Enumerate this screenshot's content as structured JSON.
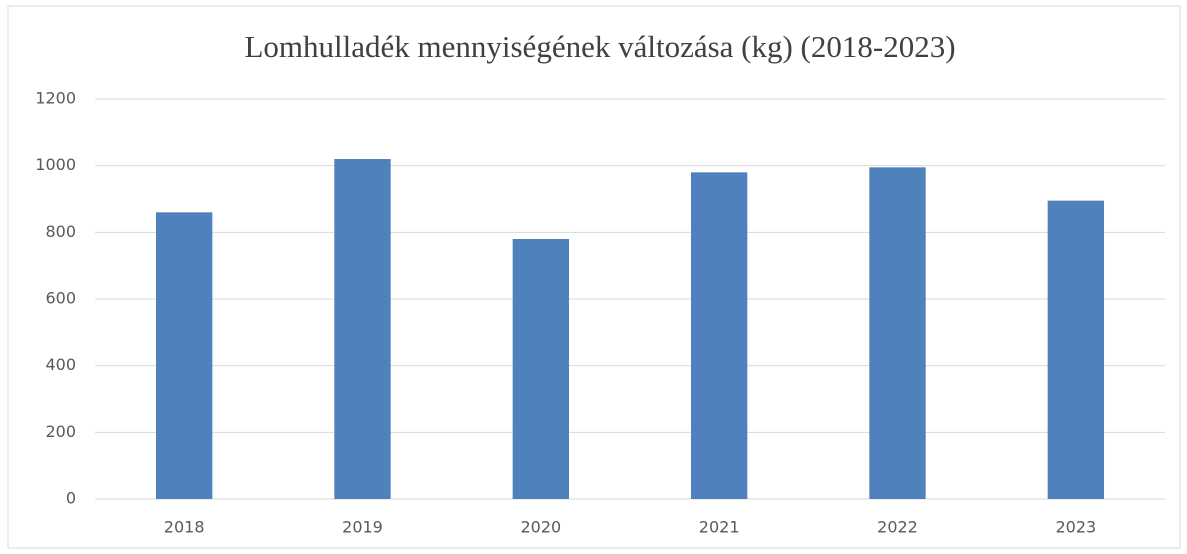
{
  "chart_data": {
    "type": "bar",
    "title": "Lomhulladék mennyiségének változása (kg) (2018-2023)",
    "categories": [
      "2018",
      "2019",
      "2020",
      "2021",
      "2022",
      "2023"
    ],
    "values": [
      860,
      1020,
      780,
      980,
      995,
      895
    ],
    "color": "#4f81bd",
    "ylim": [
      0,
      1200
    ],
    "yticks": [
      0,
      200,
      400,
      600,
      800,
      1000,
      1200
    ],
    "grid": true
  }
}
